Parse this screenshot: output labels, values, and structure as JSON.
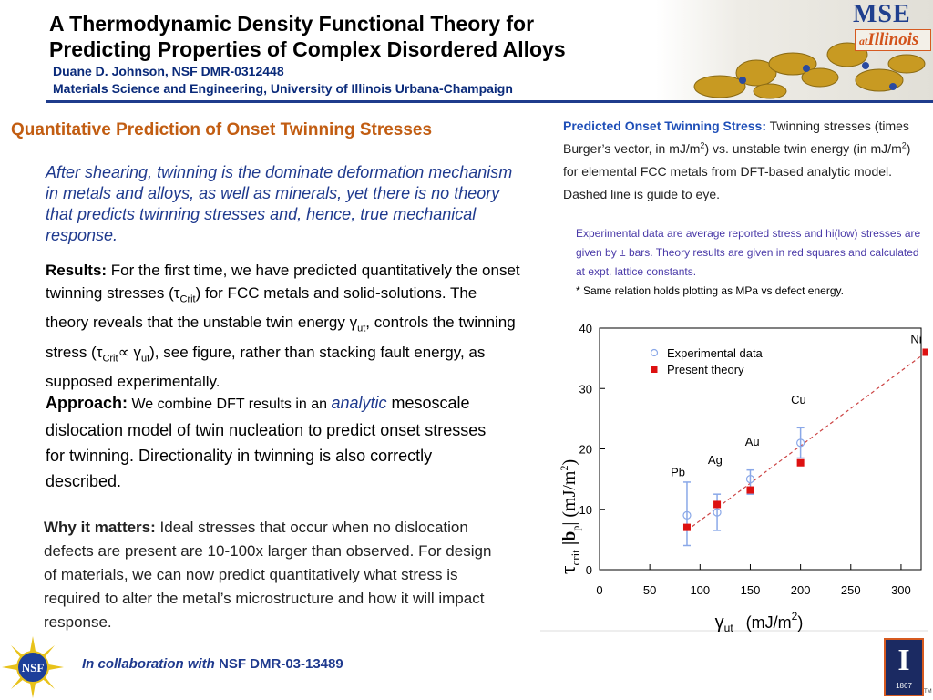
{
  "header": {
    "title_line1": "A Thermodynamic Density Functional Theory for",
    "title_line2": "Predicting Properties of Complex Disordered Alloys",
    "subtitle": "Duane D. Johnson,   NSF DMR-0312448",
    "affiliation": "Materials Science and Engineering, University of Illinois Urbana-Champaign",
    "logo_text_mse": "MSE",
    "logo_text_at": "at",
    "logo_text_illinois": "Illinois"
  },
  "left": {
    "heading": "Quantitative Prediction of Onset Twinning Stresses",
    "intro": "After shearing, twinning is the dominate deformation mechanism in metals and alloys, as well as minerals, yet there is no theory that predicts twinning stresses and, hence, true mechanical response.",
    "results_label": "Results:",
    "results_text_1": " For the first time, we have predicted quantitatively the onset twinning stresses (",
    "results_tau": "τ",
    "results_crit": "Crit",
    "results_text_2": ") for FCC metals and solid-solutions. The theory reveals that the unstable twin energy ",
    "results_gamma": "γ",
    "results_ut": "ut",
    "results_text_3": ", controls the twinning stress (",
    "results_prop": "∝",
    "results_text_4": "), see figure, rather than stacking fault energy, as supposed experimentally.",
    "approach_label": "Approach:",
    "approach_text_1": "  We combine DFT results in an ",
    "approach_analytic": "analytic",
    "approach_text_2": " mesoscale dislocation model of twin nucleation to predict onset stresses for twinning. Directionality in twinning is also correctly described.",
    "why_label": "Why it matters:",
    "why_text": "  Ideal stresses that occur when no dislocation defects are present are 10-100x larger than observed. For  design of materials, we can now predict quantitatively what stress is required to alter the metal’s microstructure and how it will impact response."
  },
  "footer": {
    "collab_text": "In collaboration with  ",
    "collab_grant": "NSF DMR-03-13489",
    "nsf_logo_text": "NSF",
    "seal_letter": "I",
    "seal_year": "1867",
    "seal_tm": "TM"
  },
  "right": {
    "caption_title": "Predicted Onset Twinning Stress:",
    "caption_1": "  Twinning stresses (times Burger’s vector, in mJ/m",
    "caption_sup": "2",
    "caption_2": ") vs. unstable twin energy (in mJ/m",
    "caption_3": ") for elemental FCC metals from DFT-based analytic model.",
    "caption_4": "Dashed line is guide to eye.",
    "note": "Experimental data are average reported stress and hi(low) stresses are given by ± bars. Theory results are given in red squares and calculated at expt. lattice constants.",
    "note2": "* Same relation holds plotting as MPa vs defect energy."
  },
  "chart_data": {
    "type": "scatter",
    "xlim": [
      0,
      320
    ],
    "ylim": [
      0,
      40
    ],
    "xticks": [
      0,
      50,
      100,
      150,
      200,
      250,
      300
    ],
    "yticks": [
      0,
      10,
      20,
      30,
      40
    ],
    "xlabel_symbol": "γ",
    "xlabel_sub": "ut",
    "xlabel_units": "(mJ/m",
    "xlabel_sup": "2",
    "xlabel_close": ")",
    "ylabel_symbol": "τ",
    "ylabel_sub": "crit",
    "ylabel_mid": " |b",
    "ylabel_sub2": "p",
    "ylabel_units": "| (mJ/m",
    "ylabel_sup": "2",
    "ylabel_close": ")",
    "legend_position": "top-left",
    "series": [
      {
        "name": "Experimental data",
        "color": "#8aa8e8",
        "marker": "open-circle",
        "points": [
          {
            "x": 87,
            "y": 9.0,
            "lo": 4.0,
            "hi": 14.5
          },
          {
            "x": 117,
            "y": 9.5,
            "lo": 6.5,
            "hi": 12.5
          },
          {
            "x": 150,
            "y": 15.0,
            "lo": 12.5,
            "hi": 16.5
          },
          {
            "x": 200,
            "y": 21.0,
            "lo": 18.5,
            "hi": 23.5
          }
        ]
      },
      {
        "name": "Present theory",
        "color": "#dd1111",
        "marker": "filled-square",
        "points": [
          {
            "x": 87,
            "y": 7.0
          },
          {
            "x": 117,
            "y": 10.8
          },
          {
            "x": 150,
            "y": 13.2
          },
          {
            "x": 200,
            "y": 17.7
          },
          {
            "x": 325,
            "y": 36.0
          }
        ]
      }
    ],
    "guide_line": {
      "x1": 87,
      "y1": 6.5,
      "x2": 325,
      "y2": 36.0,
      "color": "#cc4444"
    },
    "annotations": [
      {
        "text": "Pb",
        "x": 78,
        "y": 15.5
      },
      {
        "text": "Ag",
        "x": 115,
        "y": 17.5
      },
      {
        "text": "Au",
        "x": 152,
        "y": 20.5
      },
      {
        "text": "Cu",
        "x": 198,
        "y": 27.5
      },
      {
        "text": "Ni",
        "x": 315,
        "y": 37.5
      }
    ]
  }
}
